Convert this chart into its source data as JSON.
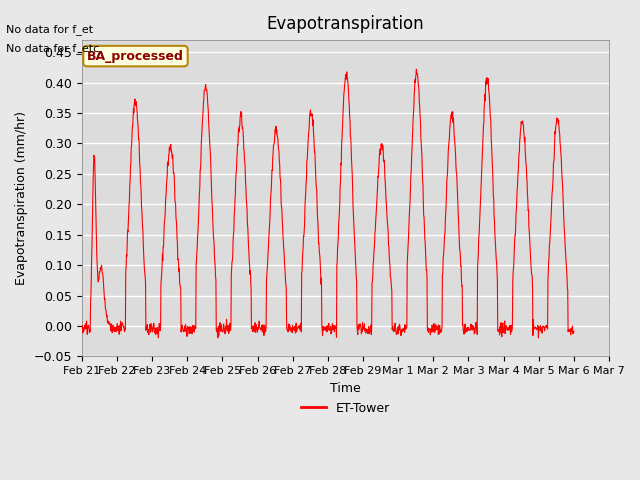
{
  "title": "Evapotranspiration",
  "ylabel": "Evapotranspiration (mm/hr)",
  "xlabel": "Time",
  "legend_label": "ET-Tower",
  "text_no_data": [
    "No data for f_et",
    "No data for f_etc"
  ],
  "box_label": "BA_processed",
  "ylim": [
    -0.05,
    0.47
  ],
  "line_color": "red",
  "fig_facecolor": "#e8e8e8",
  "ax_facecolor": "#dcdcdc",
  "grid_color": "white",
  "xtick_labels": [
    "Feb 21",
    "Feb 22",
    "Feb 23",
    "Feb 24",
    "Feb 25",
    "Feb 26",
    "Feb 27",
    "Feb 28",
    "Feb 29",
    "Mar 1",
    "Mar 2",
    "Mar 3",
    "Mar 4",
    "Mar 5",
    "Mar 6",
    "Mar 7"
  ],
  "ytick_vals": [
    -0.05,
    0.0,
    0.05,
    0.1,
    0.15,
    0.2,
    0.25,
    0.3,
    0.35,
    0.4,
    0.45
  ],
  "daily_peaks": [
    0.325,
    0.37,
    0.295,
    0.395,
    0.345,
    0.325,
    0.35,
    0.415,
    0.295,
    0.415,
    0.345,
    0.405,
    0.335,
    0.34
  ],
  "num_days": 14,
  "pts_per_day": 96
}
